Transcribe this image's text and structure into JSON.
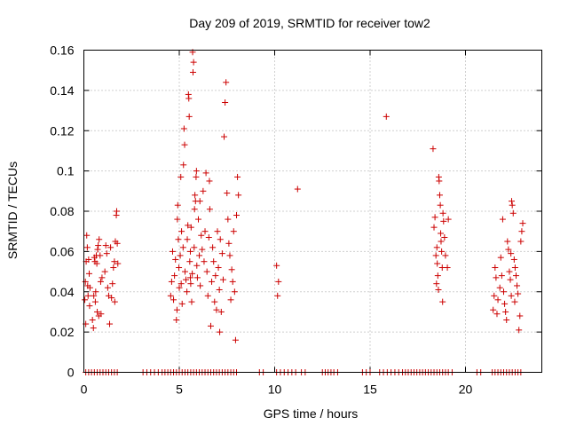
{
  "chart_data": {
    "type": "scatter",
    "title": "Day 209 of 2019, SRMTID for receiver tow2",
    "xlabel": "GPS time / hours",
    "ylabel": "SRMTID / TECUs",
    "xlim": [
      0,
      24
    ],
    "ylim": [
      0,
      0.16
    ],
    "xticks": [
      0,
      5,
      10,
      15,
      20
    ],
    "xtick_labels": [
      "0",
      "5",
      "10",
      "15",
      "20"
    ],
    "yticks": [
      0,
      0.02,
      0.04,
      0.06,
      0.08,
      0.1,
      0.12,
      0.14,
      0.16
    ],
    "ytick_labels": [
      "0",
      "0.02",
      "0.04",
      "0.06",
      "0.08",
      "0.1",
      "0.12",
      "0.14",
      "0.16"
    ],
    "grid": true,
    "marker": "+",
    "color": "#cc0000",
    "series": [
      {
        "name": "SRMTID",
        "points": [
          [
            0.05,
            0.036
          ],
          [
            0.08,
            0.045
          ],
          [
            0.12,
            0.055
          ],
          [
            0.15,
            0.068
          ],
          [
            0.18,
            0.062
          ],
          [
            0.2,
            0.043
          ],
          [
            0.22,
            0.038
          ],
          [
            0.25,
            0.056
          ],
          [
            0.28,
            0.049
          ],
          [
            0.3,
            0.033
          ],
          [
            0.1,
            0.024
          ],
          [
            0.32,
            0.042
          ],
          [
            0.45,
            0.026
          ],
          [
            0.5,
            0.022
          ],
          [
            0.52,
            0.038
          ],
          [
            0.55,
            0.057
          ],
          [
            0.58,
            0.055
          ],
          [
            0.6,
            0.035
          ],
          [
            0.62,
            0.04
          ],
          [
            0.65,
            0.058
          ],
          [
            0.68,
            0.054
          ],
          [
            0.7,
            0.03
          ],
          [
            0.72,
            0.061
          ],
          [
            0.75,
            0.063
          ],
          [
            0.78,
            0.028
          ],
          [
            0.8,
            0.066
          ],
          [
            0.85,
            0.058
          ],
          [
            0.88,
            0.045
          ],
          [
            0.9,
            0.029
          ],
          [
            0.95,
            0.047
          ],
          [
            1.1,
            0.05
          ],
          [
            1.15,
            0.063
          ],
          [
            1.2,
            0.059
          ],
          [
            1.25,
            0.042
          ],
          [
            1.3,
            0.038
          ],
          [
            1.35,
            0.024
          ],
          [
            1.4,
            0.062
          ],
          [
            1.45,
            0.037
          ],
          [
            1.5,
            0.044
          ],
          [
            1.55,
            0.052
          ],
          [
            1.6,
            0.055
          ],
          [
            1.65,
            0.065
          ],
          [
            1.7,
            0.078
          ],
          [
            1.72,
            0.08
          ],
          [
            1.75,
            0.064
          ],
          [
            1.78,
            0.054
          ],
          [
            1.62,
            0.035
          ],
          [
            4.55,
            0.038
          ],
          [
            4.6,
            0.045
          ],
          [
            4.65,
            0.06
          ],
          [
            4.7,
            0.036
          ],
          [
            4.75,
            0.048
          ],
          [
            4.8,
            0.056
          ],
          [
            4.85,
            0.026
          ],
          [
            4.9,
            0.076
          ],
          [
            4.92,
            0.083
          ],
          [
            4.95,
            0.066
          ],
          [
            4.98,
            0.052
          ],
          [
            5.0,
            0.042
          ],
          [
            5.05,
            0.058
          ],
          [
            5.1,
            0.044
          ],
          [
            5.12,
            0.07
          ],
          [
            5.15,
            0.034
          ],
          [
            5.2,
            0.062
          ],
          [
            5.22,
            0.103
          ],
          [
            5.25,
            0.121
          ],
          [
            5.28,
            0.113
          ],
          [
            5.3,
            0.05
          ],
          [
            5.35,
            0.046
          ],
          [
            5.4,
            0.04
          ],
          [
            5.42,
            0.066
          ],
          [
            5.45,
            0.073
          ],
          [
            5.48,
            0.138
          ],
          [
            5.5,
            0.136
          ],
          [
            5.52,
            0.127
          ],
          [
            5.55,
            0.055
          ],
          [
            5.58,
            0.06
          ],
          [
            5.6,
            0.044
          ],
          [
            5.62,
            0.072
          ],
          [
            5.65,
            0.035
          ],
          [
            5.68,
            0.049
          ],
          [
            5.7,
            0.159
          ],
          [
            5.72,
            0.149
          ],
          [
            5.75,
            0.154
          ],
          [
            5.78,
            0.062
          ],
          [
            5.8,
            0.081
          ],
          [
            5.82,
            0.088
          ],
          [
            5.85,
            0.085
          ],
          [
            5.88,
            0.097
          ],
          [
            5.9,
            0.1
          ],
          [
            5.92,
            0.053
          ],
          [
            5.95,
            0.047
          ],
          [
            6.0,
            0.076
          ],
          [
            6.05,
            0.058
          ],
          [
            6.1,
            0.043
          ],
          [
            6.15,
            0.068
          ],
          [
            6.2,
            0.061
          ],
          [
            6.25,
            0.09
          ],
          [
            6.3,
            0.055
          ],
          [
            6.35,
            0.07
          ],
          [
            6.4,
            0.099
          ],
          [
            6.45,
            0.05
          ],
          [
            6.5,
            0.038
          ],
          [
            6.55,
            0.067
          ],
          [
            6.6,
            0.081
          ],
          [
            6.65,
            0.023
          ],
          [
            6.7,
            0.045
          ],
          [
            6.75,
            0.062
          ],
          [
            6.8,
            0.055
          ],
          [
            6.85,
            0.035
          ],
          [
            6.9,
            0.048
          ],
          [
            6.95,
            0.031
          ],
          [
            7.0,
            0.07
          ],
          [
            7.05,
            0.052
          ],
          [
            7.1,
            0.041
          ],
          [
            7.15,
            0.066
          ],
          [
            7.2,
            0.03
          ],
          [
            7.25,
            0.059
          ],
          [
            7.3,
            0.046
          ],
          [
            7.35,
            0.117
          ],
          [
            7.4,
            0.134
          ],
          [
            7.45,
            0.144
          ],
          [
            7.5,
            0.089
          ],
          [
            7.55,
            0.076
          ],
          [
            7.6,
            0.064
          ],
          [
            7.65,
            0.058
          ],
          [
            7.7,
            0.036
          ],
          [
            7.75,
            0.051
          ],
          [
            7.8,
            0.045
          ],
          [
            7.85,
            0.07
          ],
          [
            7.9,
            0.04
          ],
          [
            7.95,
            0.016
          ],
          [
            8.0,
            0.078
          ],
          [
            8.05,
            0.097
          ],
          [
            8.1,
            0.088
          ],
          [
            7.12,
            0.02
          ],
          [
            6.58,
            0.095
          ],
          [
            6.08,
            0.085
          ],
          [
            5.58,
            0.047
          ],
          [
            4.88,
            0.031
          ],
          [
            5.08,
            0.097
          ],
          [
            10.1,
            0.053
          ],
          [
            10.2,
            0.045
          ],
          [
            10.15,
            0.038
          ],
          [
            11.2,
            0.091
          ],
          [
            15.85,
            0.127
          ],
          [
            18.3,
            0.111
          ],
          [
            18.35,
            0.072
          ],
          [
            18.4,
            0.077
          ],
          [
            18.45,
            0.058
          ],
          [
            18.5,
            0.062
          ],
          [
            18.52,
            0.054
          ],
          [
            18.55,
            0.048
          ],
          [
            18.58,
            0.041
          ],
          [
            18.6,
            0.097
          ],
          [
            18.62,
            0.095
          ],
          [
            18.65,
            0.088
          ],
          [
            18.68,
            0.083
          ],
          [
            18.7,
            0.069
          ],
          [
            18.72,
            0.065
          ],
          [
            18.75,
            0.06
          ],
          [
            18.78,
            0.052
          ],
          [
            18.8,
            0.035
          ],
          [
            18.85,
            0.075
          ],
          [
            18.9,
            0.067
          ],
          [
            18.95,
            0.058
          ],
          [
            19.05,
            0.052
          ],
          [
            19.1,
            0.076
          ],
          [
            18.48,
            0.044
          ],
          [
            18.82,
            0.079
          ],
          [
            21.45,
            0.031
          ],
          [
            21.5,
            0.038
          ],
          [
            21.55,
            0.052
          ],
          [
            21.6,
            0.047
          ],
          [
            21.65,
            0.029
          ],
          [
            21.7,
            0.036
          ],
          [
            21.8,
            0.042
          ],
          [
            21.85,
            0.057
          ],
          [
            21.9,
            0.048
          ],
          [
            21.95,
            0.076
          ],
          [
            22.0,
            0.04
          ],
          [
            22.05,
            0.034
          ],
          [
            22.1,
            0.03
          ],
          [
            22.15,
            0.026
          ],
          [
            22.2,
            0.065
          ],
          [
            22.25,
            0.061
          ],
          [
            22.3,
            0.05
          ],
          [
            22.35,
            0.046
          ],
          [
            22.4,
            0.038
          ],
          [
            22.42,
            0.085
          ],
          [
            22.45,
            0.083
          ],
          [
            22.5,
            0.079
          ],
          [
            22.55,
            0.056
          ],
          [
            22.6,
            0.052
          ],
          [
            22.65,
            0.048
          ],
          [
            22.7,
            0.043
          ],
          [
            22.75,
            0.039
          ],
          [
            22.8,
            0.021
          ],
          [
            22.85,
            0.028
          ],
          [
            22.9,
            0.065
          ],
          [
            22.95,
            0.07
          ],
          [
            23.0,
            0.074
          ],
          [
            22.38,
            0.059
          ],
          [
            22.58,
            0.035
          ]
        ]
      }
    ],
    "zero_points_x": [
      0.1,
      0.25,
      0.4,
      0.55,
      0.7,
      0.85,
      1.0,
      1.15,
      1.3,
      1.45,
      1.6,
      1.75,
      3.1,
      3.3,
      3.5,
      3.7,
      3.9,
      4.1,
      4.25,
      4.4,
      4.55,
      4.7,
      4.85,
      5.0,
      5.15,
      5.3,
      5.45,
      5.6,
      5.75,
      5.9,
      6.05,
      6.2,
      6.35,
      6.5,
      6.65,
      6.8,
      6.95,
      7.1,
      7.25,
      7.4,
      7.55,
      7.7,
      7.85,
      8.0,
      9.2,
      9.4,
      10.1,
      10.3,
      10.5,
      10.7,
      10.9,
      11.1,
      11.4,
      11.6,
      12.5,
      12.65,
      12.8,
      12.95,
      13.1,
      13.3,
      14.6,
      14.8,
      15.0,
      15.5,
      15.7,
      15.9,
      16.1,
      16.3,
      16.5,
      16.7,
      16.85,
      17.0,
      17.15,
      17.3,
      17.45,
      17.6,
      17.75,
      17.9,
      18.05,
      18.2,
      18.35,
      18.5,
      18.65,
      18.8,
      18.95,
      19.1,
      19.3,
      20.6,
      20.8,
      21.4,
      21.55,
      21.7,
      21.85,
      22.0,
      22.15,
      22.3,
      22.45,
      22.6,
      22.75,
      22.9
    ]
  }
}
